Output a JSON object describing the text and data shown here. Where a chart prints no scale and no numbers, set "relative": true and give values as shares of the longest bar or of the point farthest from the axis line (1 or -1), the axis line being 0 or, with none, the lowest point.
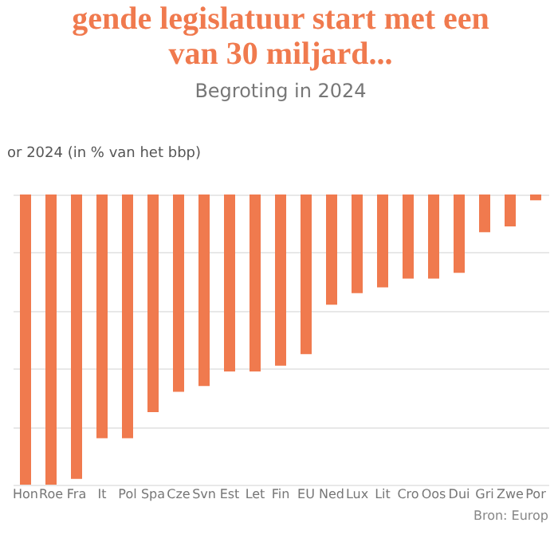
{
  "chart_data": {
    "type": "bar",
    "title": "gende legislatuur start met een\nvan 30 miljard...",
    "subtitle": "Begroting in 2024",
    "ylabel": "or 2024 (in % van het bbp)",
    "categories": [
      "Hon",
      "Roe",
      "Fra",
      "It",
      "Pol",
      "Spa",
      "Cze",
      "Svn",
      "Est",
      "Let",
      "Fin",
      "EU",
      "Ned",
      "Lux",
      "Lit",
      "Cro",
      "Oos",
      "Dui",
      "Gri",
      "Zwe",
      "Por"
    ],
    "values": [
      -1,
      -1,
      -0.98,
      -0.84,
      -0.84,
      -0.75,
      -0.68,
      -0.66,
      -0.61,
      -0.61,
      -0.59,
      -0.55,
      -0.38,
      -0.34,
      -0.32,
      -0.29,
      -0.29,
      -0.27,
      -0.13,
      -0.11,
      -0.02
    ],
    "color": "#f07a4e",
    "relative": true,
    "grid": "y",
    "annotations": [
      "Bron: Europ"
    ]
  }
}
